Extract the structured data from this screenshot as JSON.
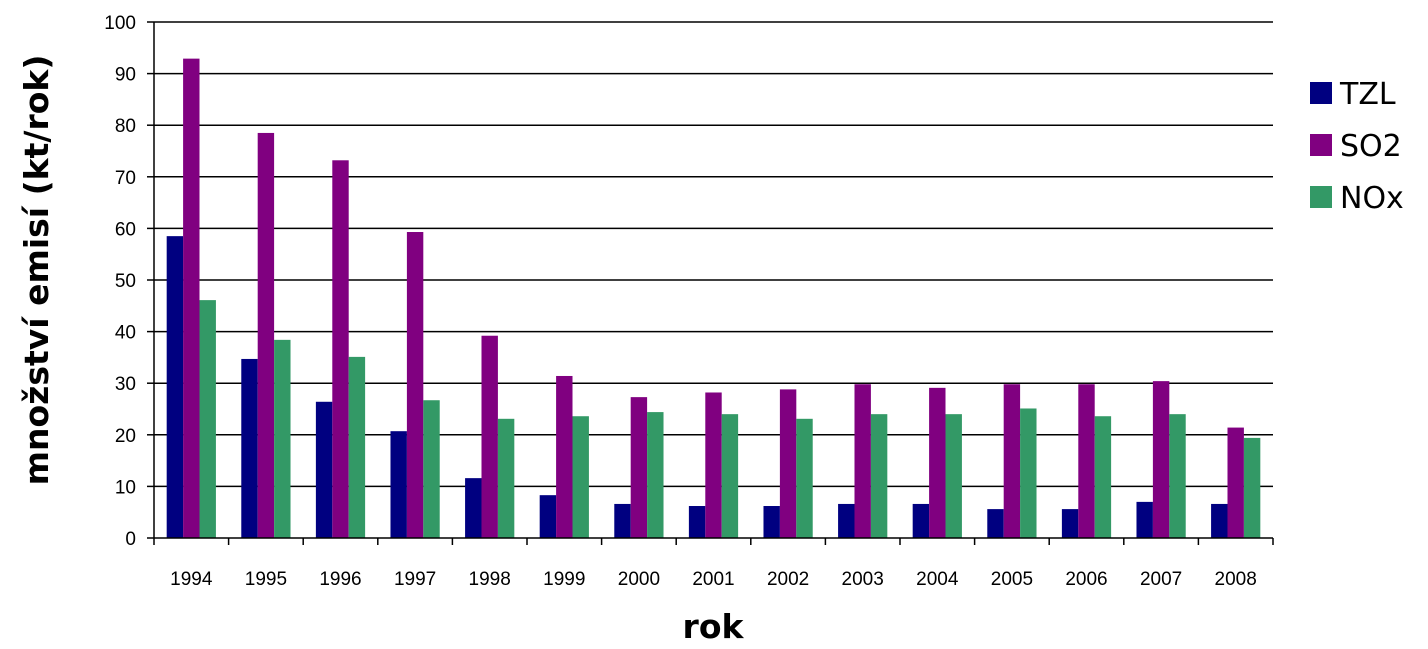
{
  "chart_data": {
    "type": "bar",
    "xlabel": "rok",
    "ylabel": "množství emisí (kt/rok)",
    "ylim": [
      0,
      100
    ],
    "yticks": [
      "0",
      "10",
      "20",
      "30",
      "40",
      "50",
      "60",
      "70",
      "80",
      "90",
      "100"
    ],
    "grid": true,
    "legend_position": "right",
    "categories": [
      "1994",
      "1995",
      "1996",
      "1997",
      "1998",
      "1999",
      "2000",
      "2001",
      "2002",
      "2003",
      "2004",
      "2005",
      "2006",
      "2007",
      "2008"
    ],
    "series": [
      {
        "name": "TZL",
        "color": "#000080",
        "values": [
          58.5,
          34.7,
          26.4,
          20.7,
          11.6,
          8.3,
          6.6,
          6.2,
          6.2,
          6.6,
          6.6,
          5.6,
          5.6,
          7.0,
          6.6
        ]
      },
      {
        "name": "SO2",
        "color": "#800080",
        "values": [
          92.9,
          78.5,
          73.2,
          59.3,
          39.2,
          31.4,
          27.3,
          28.2,
          28.8,
          29.8,
          29.1,
          29.8,
          29.8,
          30.4,
          21.4
        ]
      },
      {
        "name": "NOx",
        "color": "#339966",
        "values": [
          46.1,
          38.4,
          35.1,
          26.7,
          23.1,
          23.6,
          24.4,
          24.0,
          23.1,
          24.0,
          24.0,
          25.1,
          23.6,
          24.0,
          19.4
        ]
      }
    ]
  }
}
